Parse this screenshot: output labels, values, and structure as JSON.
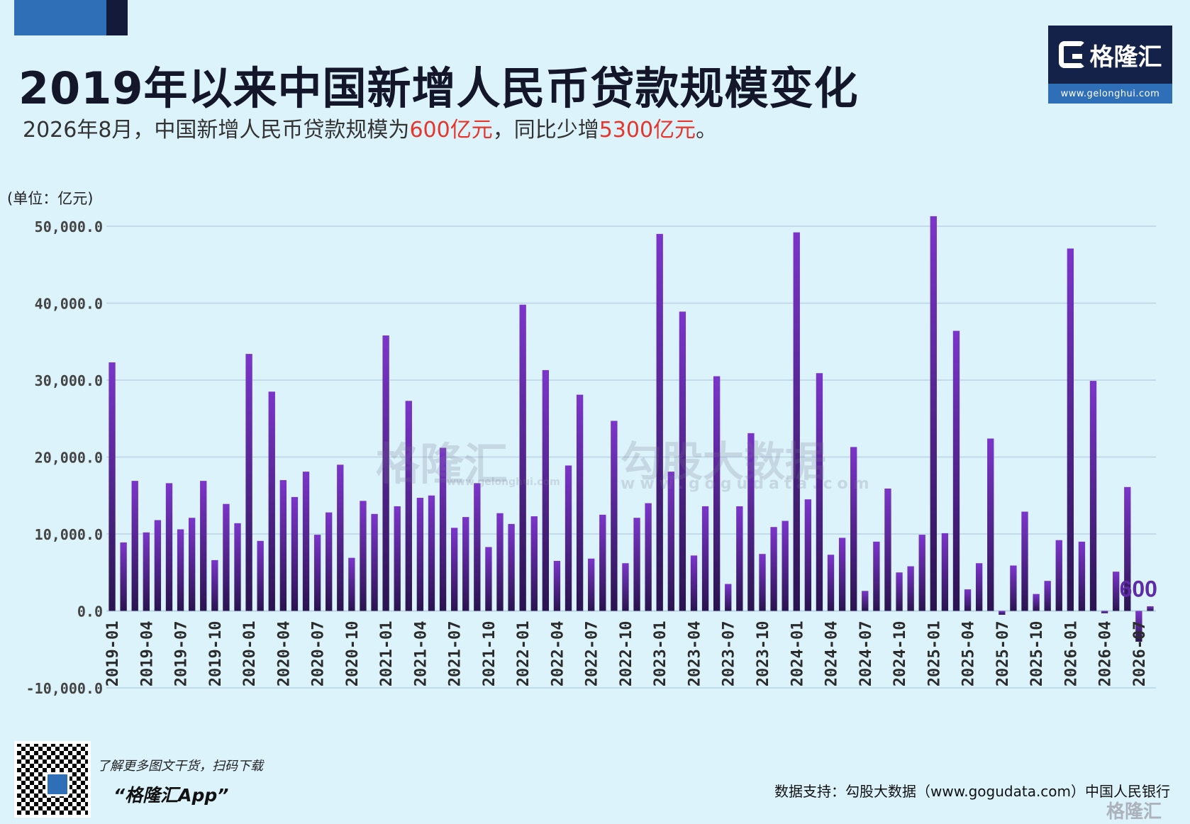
{
  "header": {
    "title": "2019年以来中国新增人民币贷款规模变化",
    "subtitle_parts": [
      "2026年8月，中国新增人民币贷款规模为",
      "600亿元",
      "，同比少增",
      "5300亿元",
      "。"
    ]
  },
  "logo": {
    "name": "格隆汇",
    "url": "www.gelonghui.com"
  },
  "watermarks": {
    "gelonghui_name": "格隆汇",
    "gelonghui_url": "www.gelonghui.com",
    "gogudata_name": "勾股大数据",
    "gogudata_url": "www.gogudata.com"
  },
  "footer": {
    "app_tip": "了解更多图文干货，扫码下载",
    "app_name": "“格隆汇App”",
    "source": "数据支持：勾股大数据（www.gogudata.com）中国人民银行",
    "corner_logo": "格隆汇"
  },
  "colors": {
    "bar_top": "#7b35c9",
    "bar_bottom": "#2a1450",
    "background": "#dcf3fb",
    "highlight": "#e8352b"
  },
  "chart_data": {
    "type": "bar",
    "unit_label": "(单位：亿元)",
    "ylim": [
      -10000,
      50000
    ],
    "y_ticks": [
      -10000,
      0,
      10000,
      20000,
      30000,
      40000,
      50000
    ],
    "y_tick_labels": [
      "-10,000.0",
      "0.0",
      "10,000.0",
      "20,000.0",
      "30,000.0",
      "40,000.0",
      "50,000.0"
    ],
    "grid": true,
    "x_tick_labels": [
      "2019-01",
      "2019-04",
      "2019-07",
      "2019-10",
      "2020-01",
      "2020-04",
      "2020-07",
      "2020-10",
      "2021-01",
      "2021-04",
      "2021-07",
      "2021-10",
      "2022-01",
      "2022-04",
      "2022-07",
      "2022-10",
      "2023-01",
      "2023-04",
      "2023-07",
      "2023-10",
      "2024-01",
      "2024-04",
      "2024-07",
      "2024-10",
      "2025-01",
      "2025-04",
      "2025-07",
      "2025-10",
      "2026-01",
      "2026-04",
      "2026-07"
    ],
    "annotation": "600",
    "categories": [
      "2019-01",
      "2019-02",
      "2019-03",
      "2019-04",
      "2019-05",
      "2019-06",
      "2019-07",
      "2019-08",
      "2019-09",
      "2019-10",
      "2019-11",
      "2019-12",
      "2020-01",
      "2020-02",
      "2020-03",
      "2020-04",
      "2020-05",
      "2020-06",
      "2020-07",
      "2020-08",
      "2020-09",
      "2020-10",
      "2020-11",
      "2020-12",
      "2021-01",
      "2021-02",
      "2021-03",
      "2021-04",
      "2021-05",
      "2021-06",
      "2021-07",
      "2021-08",
      "2021-09",
      "2021-10",
      "2021-11",
      "2021-12",
      "2022-01",
      "2022-02",
      "2022-03",
      "2022-04",
      "2022-05",
      "2022-06",
      "2022-07",
      "2022-08",
      "2022-09",
      "2022-10",
      "2022-11",
      "2022-12",
      "2023-01",
      "2023-02",
      "2023-03",
      "2023-04",
      "2023-05",
      "2023-06",
      "2023-07",
      "2023-08",
      "2023-09",
      "2023-10",
      "2023-11",
      "2023-12",
      "2024-01",
      "2024-02",
      "2024-03",
      "2024-04",
      "2024-05",
      "2024-06",
      "2024-07",
      "2024-08",
      "2024-09",
      "2024-10",
      "2024-11",
      "2024-12",
      "2025-01",
      "2025-02",
      "2025-03",
      "2025-04",
      "2025-05",
      "2025-06",
      "2025-07",
      "2025-08",
      "2025-09",
      "2025-10",
      "2025-11",
      "2025-12",
      "2026-01",
      "2026-02",
      "2026-03",
      "2026-04",
      "2026-05",
      "2026-06",
      "2026-07",
      "2026-08"
    ],
    "values": [
      32300,
      8900,
      16900,
      10200,
      11800,
      16600,
      10600,
      12100,
      16900,
      6600,
      13900,
      11400,
      33400,
      9100,
      28500,
      17000,
      14800,
      18100,
      9900,
      12800,
      19000,
      6900,
      14300,
      12600,
      35800,
      13600,
      27300,
      14700,
      15000,
      21200,
      10800,
      12200,
      16600,
      8300,
      12700,
      11300,
      39800,
      12300,
      31300,
      6500,
      18900,
      28100,
      6800,
      12500,
      24700,
      6200,
      12100,
      14000,
      49000,
      18100,
      38900,
      7200,
      13600,
      30500,
      3500,
      13600,
      23100,
      7400,
      10900,
      11700,
      49200,
      14500,
      30900,
      7300,
      9500,
      21300,
      2600,
      9000,
      15900,
      5000,
      5800,
      9900,
      51300,
      10100,
      36400,
      2800,
      6200,
      22400,
      -500,
      5900,
      12900,
      2200,
      3900,
      9200,
      47100,
      9000,
      29900,
      -300,
      5100,
      16100,
      -4000,
      600
    ]
  }
}
